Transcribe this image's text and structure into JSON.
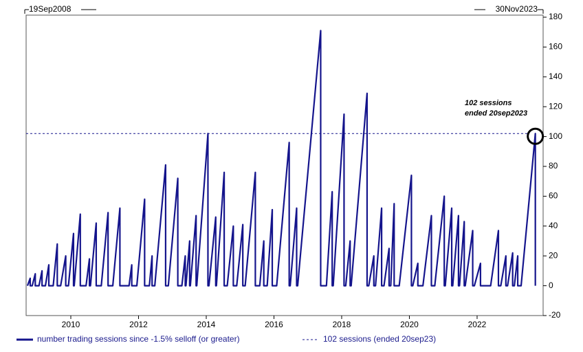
{
  "chart_data": {
    "type": "line",
    "start_label": "19Sep2008",
    "end_label": "30Nov2023",
    "series": [
      {
        "name": "number trading sessions since -1.5% selloff (or greater)",
        "color": "#14148c",
        "x": [
          2008.72,
          2008.8,
          2008.8,
          2008.86,
          2008.95,
          2008.95,
          2009.06,
          2009.15,
          2009.15,
          2009.25,
          2009.35,
          2009.35,
          2009.48,
          2009.6,
          2009.6,
          2009.7,
          2009.85,
          2009.85,
          2009.93,
          2010.08,
          2010.08,
          2010.1,
          2010.28,
          2010.28,
          2010.45,
          2010.55,
          2010.55,
          2010.58,
          2010.75,
          2010.75,
          2010.9,
          2011.1,
          2011.1,
          2011.24,
          2011.45,
          2011.45,
          2011.72,
          2011.8,
          2011.8,
          2011.95,
          2012.18,
          2012.18,
          2012.32,
          2012.4,
          2012.4,
          2012.48,
          2012.8,
          2012.8,
          2012.88,
          2013.16,
          2013.16,
          2013.28,
          2013.38,
          2013.38,
          2013.4,
          2013.51,
          2013.51,
          2013.53,
          2013.7,
          2013.7,
          2013.72,
          2014.05,
          2014.05,
          2014.08,
          2014.28,
          2014.28,
          2014.3,
          2014.53,
          2014.53,
          2014.62,
          2014.8,
          2014.8,
          2014.9,
          2015.08,
          2015.08,
          2015.15,
          2015.45,
          2015.45,
          2015.58,
          2015.7,
          2015.7,
          2015.8,
          2015.95,
          2015.95,
          2016.08,
          2016.45,
          2016.45,
          2016.48,
          2016.67,
          2016.67,
          2016.7,
          2017.38,
          2017.38,
          2017.55,
          2017.72,
          2017.72,
          2017.75,
          2018.07,
          2018.07,
          2018.12,
          2018.25,
          2018.25,
          2018.28,
          2018.75,
          2018.75,
          2018.8,
          2018.95,
          2018.95,
          2019.0,
          2019.18,
          2019.18,
          2019.25,
          2019.4,
          2019.4,
          2019.45,
          2019.55,
          2019.55,
          2019.7,
          2020.06,
          2020.06,
          2020.1,
          2020.25,
          2020.25,
          2020.4,
          2020.65,
          2020.65,
          2020.75,
          2021.03,
          2021.03,
          2021.06,
          2021.25,
          2021.25,
          2021.28,
          2021.45,
          2021.45,
          2021.48,
          2021.62,
          2021.62,
          2021.65,
          2021.87,
          2021.87,
          2021.92,
          2022.1,
          2022.1,
          2022.4,
          2022.63,
          2022.63,
          2022.7,
          2022.85,
          2022.85,
          2022.9,
          2023.05,
          2023.05,
          2023.1,
          2023.2,
          2023.2,
          2023.3,
          2023.72,
          2023.72
        ],
        "values": [
          0,
          5,
          0,
          0,
          8,
          0,
          0,
          10,
          0,
          0,
          14,
          0,
          0,
          28,
          0,
          0,
          20,
          0,
          0,
          35,
          0,
          0,
          48,
          0,
          0,
          18,
          0,
          0,
          42,
          0,
          0,
          49,
          0,
          0,
          52,
          0,
          0,
          14,
          0,
          0,
          58,
          0,
          0,
          20,
          0,
          0,
          81,
          0,
          0,
          72,
          0,
          0,
          20,
          0,
          0,
          30,
          0,
          0,
          47,
          0,
          0,
          102,
          0,
          0,
          46,
          0,
          0,
          76,
          0,
          0,
          40,
          0,
          0,
          41,
          0,
          0,
          76,
          0,
          0,
          30,
          0,
          0,
          51,
          0,
          0,
          96,
          0,
          0,
          52,
          0,
          0,
          171,
          0,
          0,
          63,
          0,
          0,
          115,
          0,
          0,
          30,
          0,
          0,
          129,
          0,
          0,
          20,
          0,
          0,
          52,
          0,
          0,
          25,
          0,
          0,
          55,
          0,
          0,
          74,
          0,
          0,
          15,
          0,
          0,
          47,
          0,
          0,
          60,
          0,
          0,
          52,
          0,
          0,
          47,
          0,
          0,
          43,
          0,
          0,
          37,
          0,
          0,
          15,
          0,
          0,
          37,
          0,
          0,
          20,
          0,
          0,
          22,
          0,
          0,
          20,
          0,
          0,
          102,
          0
        ]
      }
    ],
    "reference_line": {
      "value": 102,
      "label": "102 sessions (ended 20sep23)",
      "color": "#14148c"
    },
    "annotation": [
      "102 sessions",
      "ended 20sep2023"
    ],
    "xlim": [
      2008.68,
      2023.95
    ],
    "xticks": [
      2010,
      2012,
      2014,
      2016,
      2018,
      2020,
      2022
    ],
    "ylim": [
      -20,
      180
    ],
    "yticks": [
      -20,
      0,
      20,
      40,
      60,
      80,
      100,
      120,
      140,
      160,
      180
    ]
  }
}
